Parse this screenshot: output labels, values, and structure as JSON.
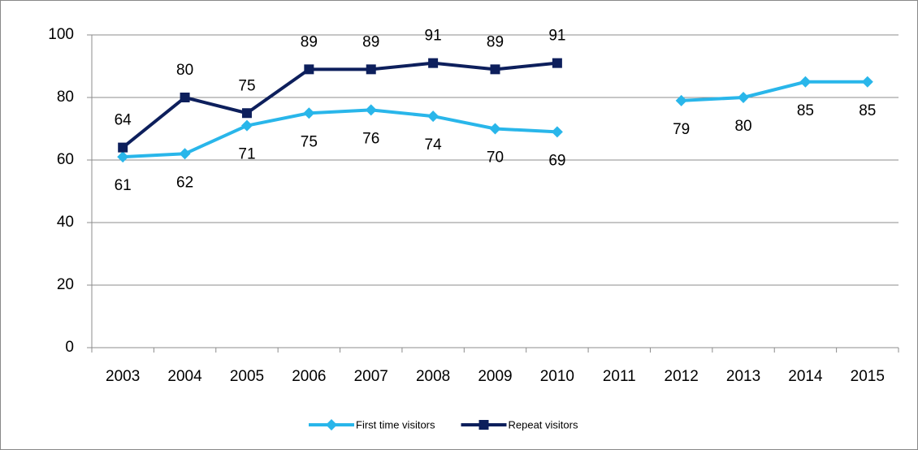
{
  "chart_data": {
    "type": "line",
    "categories": [
      "2003",
      "2004",
      "2005",
      "2006",
      "2007",
      "2008",
      "2009",
      "2010",
      "2011",
      "2012",
      "2013",
      "2014",
      "2015"
    ],
    "series": [
      {
        "name": "First time visitors",
        "color": "#29b6ea",
        "marker": "diamond",
        "label_position": "below",
        "values": [
          61,
          62,
          71,
          75,
          76,
          74,
          70,
          69,
          null,
          79,
          80,
          85,
          85
        ]
      },
      {
        "name": "Repeat visitors",
        "color": "#0d1f5c",
        "marker": "square",
        "label_position": "above",
        "values": [
          64,
          80,
          75,
          89,
          89,
          91,
          89,
          91,
          null,
          null,
          null,
          null,
          null
        ]
      }
    ],
    "ylim": [
      0,
      100
    ],
    "yticks": [
      0,
      20,
      40,
      60,
      80,
      100
    ],
    "grid": true,
    "legend": "bottom"
  }
}
